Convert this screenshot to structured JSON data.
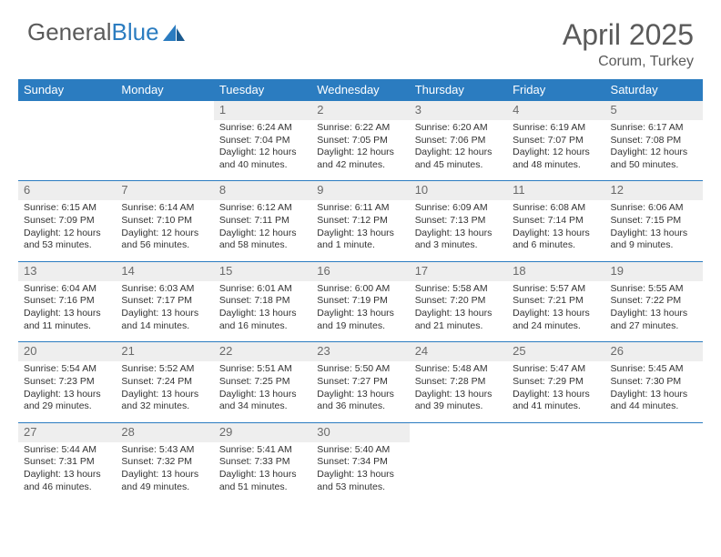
{
  "logo": {
    "word1": "General",
    "word2": "Blue"
  },
  "title": "April 2025",
  "location": "Corum, Turkey",
  "colors": {
    "header_bg": "#2b7cc0",
    "header_text": "#ffffff",
    "daynum_bg": "#eeeeee",
    "daynum_text": "#6a6a6a",
    "body_text": "#333333",
    "border": "#2b7cc0",
    "logo_gray": "#5a5a5a",
    "logo_blue": "#2b7cc0"
  },
  "weekdays": [
    "Sunday",
    "Monday",
    "Tuesday",
    "Wednesday",
    "Thursday",
    "Friday",
    "Saturday"
  ],
  "leading_empty": 2,
  "days": [
    {
      "n": 1,
      "sr": "6:24 AM",
      "ss": "7:04 PM",
      "dl": "12 hours and 40 minutes."
    },
    {
      "n": 2,
      "sr": "6:22 AM",
      "ss": "7:05 PM",
      "dl": "12 hours and 42 minutes."
    },
    {
      "n": 3,
      "sr": "6:20 AM",
      "ss": "7:06 PM",
      "dl": "12 hours and 45 minutes."
    },
    {
      "n": 4,
      "sr": "6:19 AM",
      "ss": "7:07 PM",
      "dl": "12 hours and 48 minutes."
    },
    {
      "n": 5,
      "sr": "6:17 AM",
      "ss": "7:08 PM",
      "dl": "12 hours and 50 minutes."
    },
    {
      "n": 6,
      "sr": "6:15 AM",
      "ss": "7:09 PM",
      "dl": "12 hours and 53 minutes."
    },
    {
      "n": 7,
      "sr": "6:14 AM",
      "ss": "7:10 PM",
      "dl": "12 hours and 56 minutes."
    },
    {
      "n": 8,
      "sr": "6:12 AM",
      "ss": "7:11 PM",
      "dl": "12 hours and 58 minutes."
    },
    {
      "n": 9,
      "sr": "6:11 AM",
      "ss": "7:12 PM",
      "dl": "13 hours and 1 minute."
    },
    {
      "n": 10,
      "sr": "6:09 AM",
      "ss": "7:13 PM",
      "dl": "13 hours and 3 minutes."
    },
    {
      "n": 11,
      "sr": "6:08 AM",
      "ss": "7:14 PM",
      "dl": "13 hours and 6 minutes."
    },
    {
      "n": 12,
      "sr": "6:06 AM",
      "ss": "7:15 PM",
      "dl": "13 hours and 9 minutes."
    },
    {
      "n": 13,
      "sr": "6:04 AM",
      "ss": "7:16 PM",
      "dl": "13 hours and 11 minutes."
    },
    {
      "n": 14,
      "sr": "6:03 AM",
      "ss": "7:17 PM",
      "dl": "13 hours and 14 minutes."
    },
    {
      "n": 15,
      "sr": "6:01 AM",
      "ss": "7:18 PM",
      "dl": "13 hours and 16 minutes."
    },
    {
      "n": 16,
      "sr": "6:00 AM",
      "ss": "7:19 PM",
      "dl": "13 hours and 19 minutes."
    },
    {
      "n": 17,
      "sr": "5:58 AM",
      "ss": "7:20 PM",
      "dl": "13 hours and 21 minutes."
    },
    {
      "n": 18,
      "sr": "5:57 AM",
      "ss": "7:21 PM",
      "dl": "13 hours and 24 minutes."
    },
    {
      "n": 19,
      "sr": "5:55 AM",
      "ss": "7:22 PM",
      "dl": "13 hours and 27 minutes."
    },
    {
      "n": 20,
      "sr": "5:54 AM",
      "ss": "7:23 PM",
      "dl": "13 hours and 29 minutes."
    },
    {
      "n": 21,
      "sr": "5:52 AM",
      "ss": "7:24 PM",
      "dl": "13 hours and 32 minutes."
    },
    {
      "n": 22,
      "sr": "5:51 AM",
      "ss": "7:25 PM",
      "dl": "13 hours and 34 minutes."
    },
    {
      "n": 23,
      "sr": "5:50 AM",
      "ss": "7:27 PM",
      "dl": "13 hours and 36 minutes."
    },
    {
      "n": 24,
      "sr": "5:48 AM",
      "ss": "7:28 PM",
      "dl": "13 hours and 39 minutes."
    },
    {
      "n": 25,
      "sr": "5:47 AM",
      "ss": "7:29 PM",
      "dl": "13 hours and 41 minutes."
    },
    {
      "n": 26,
      "sr": "5:45 AM",
      "ss": "7:30 PM",
      "dl": "13 hours and 44 minutes."
    },
    {
      "n": 27,
      "sr": "5:44 AM",
      "ss": "7:31 PM",
      "dl": "13 hours and 46 minutes."
    },
    {
      "n": 28,
      "sr": "5:43 AM",
      "ss": "7:32 PM",
      "dl": "13 hours and 49 minutes."
    },
    {
      "n": 29,
      "sr": "5:41 AM",
      "ss": "7:33 PM",
      "dl": "13 hours and 51 minutes."
    },
    {
      "n": 30,
      "sr": "5:40 AM",
      "ss": "7:34 PM",
      "dl": "13 hours and 53 minutes."
    }
  ],
  "labels": {
    "sunrise": "Sunrise: ",
    "sunset": "Sunset: ",
    "daylight": "Daylight: "
  }
}
